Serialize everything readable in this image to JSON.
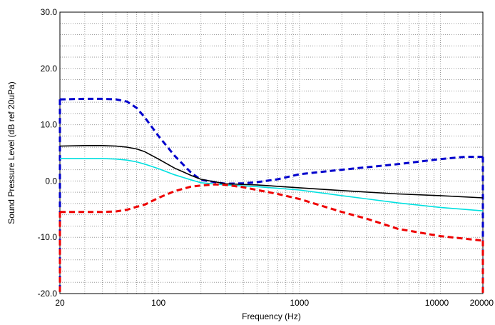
{
  "chart_data": {
    "type": "line",
    "title": "",
    "xlabel": "Frequency (Hz)",
    "ylabel": "Sound Pressure Level (dB ref 20uPa)",
    "x_scale": "log",
    "xlim": [
      20,
      20000
    ],
    "ylim": [
      -20,
      30
    ],
    "grid": true,
    "legend": "none",
    "x_ticks": [
      20,
      100,
      1000,
      10000,
      20000
    ],
    "x_tick_labels": [
      "20",
      "100",
      "1000",
      "10000",
      "20000"
    ],
    "y_ticks": [
      30,
      20,
      10,
      0,
      -10,
      -20
    ],
    "y_tick_labels": [
      "30.0",
      "20.0",
      "10.0",
      "0.0",
      "-10.0",
      "-20.0"
    ],
    "series": [
      {
        "color": "#0000cc",
        "style": "dashed",
        "x": [
          20,
          30,
          40,
          50,
          60,
          70,
          80,
          100,
          130,
          170,
          200,
          300,
          400,
          500,
          700,
          1000,
          2000,
          5000,
          10000,
          15000,
          20000
        ],
        "y": [
          14.5,
          14.6,
          14.6,
          14.5,
          14.1,
          13.0,
          11.3,
          8.0,
          4.5,
          1.5,
          0.2,
          -0.5,
          -0.4,
          -0.2,
          0.3,
          1.2,
          2.0,
          3.0,
          3.9,
          4.3,
          4.3
        ]
      },
      {
        "color": "#000000",
        "style": "solid",
        "x": [
          20,
          30,
          40,
          50,
          60,
          70,
          80,
          100,
          130,
          170,
          200,
          300,
          500,
          1000,
          2000,
          5000,
          10000,
          20000
        ],
        "y": [
          6.2,
          6.3,
          6.3,
          6.2,
          6.0,
          5.7,
          5.2,
          3.9,
          2.3,
          1.0,
          0.3,
          -0.5,
          -0.7,
          -1.2,
          -1.7,
          -2.3,
          -2.6,
          -3.0
        ]
      },
      {
        "color": "#00e0e0",
        "style": "solid",
        "x": [
          20,
          30,
          40,
          50,
          60,
          70,
          80,
          100,
          130,
          170,
          200,
          300,
          500,
          1000,
          2000,
          5000,
          10000,
          20000
        ],
        "y": [
          4.0,
          4.0,
          4.0,
          3.9,
          3.7,
          3.4,
          3.0,
          2.2,
          1.1,
          0.2,
          -0.3,
          -0.7,
          -1.0,
          -1.6,
          -2.6,
          -3.9,
          -4.7,
          -5.3
        ]
      },
      {
        "color": "#ee0000",
        "style": "dashed",
        "x": [
          20,
          30,
          40,
          50,
          60,
          70,
          80,
          100,
          130,
          170,
          200,
          250,
          300,
          400,
          500,
          700,
          1000,
          2000,
          3000,
          5000,
          10000,
          20000
        ],
        "y": [
          -5.5,
          -5.5,
          -5.5,
          -5.4,
          -5.1,
          -4.6,
          -4.2,
          -3.0,
          -1.8,
          -1.0,
          -0.8,
          -0.6,
          -0.7,
          -1.1,
          -1.6,
          -2.3,
          -3.2,
          -5.5,
          -6.7,
          -8.5,
          -9.8,
          -10.6
        ]
      }
    ]
  }
}
